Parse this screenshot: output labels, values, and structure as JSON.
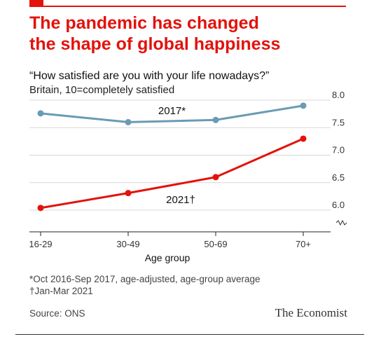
{
  "header": {
    "title_line1": "The pandemic has changed",
    "title_line2": "the shape of global happiness",
    "subtitle": "“How satisfied are you with your life nowadays?”",
    "subsubtitle": "Britain, 10=completely satisfied"
  },
  "chart_data": {
    "type": "line",
    "xlabel": "Age group",
    "ylabel": "",
    "categories": [
      "16-29",
      "30-49",
      "50-69",
      "70+"
    ],
    "yticks": [
      "8.0",
      "7.5",
      "7.0",
      "6.5",
      "6.0"
    ],
    "ylim": [
      5.85,
      8.0
    ],
    "grid": true,
    "axis_break": true,
    "series": [
      {
        "name": "2017*",
        "color": "#6a9bb4",
        "values": [
          7.76,
          7.6,
          7.64,
          7.9
        ]
      },
      {
        "name": "2021†",
        "color": "#e3120b",
        "values": [
          6.04,
          6.31,
          6.6,
          7.3
        ]
      }
    ]
  },
  "footnotes": {
    "note1": "*Oct 2016-Sep 2017, age-adjusted, age-group average",
    "note2": "†Jan-Mar 2021"
  },
  "source": "Source: ONS",
  "brand": "The Economist",
  "colors": {
    "accent": "#e3120b",
    "line2017": "#6a9bb4",
    "line2021": "#e3120b"
  }
}
